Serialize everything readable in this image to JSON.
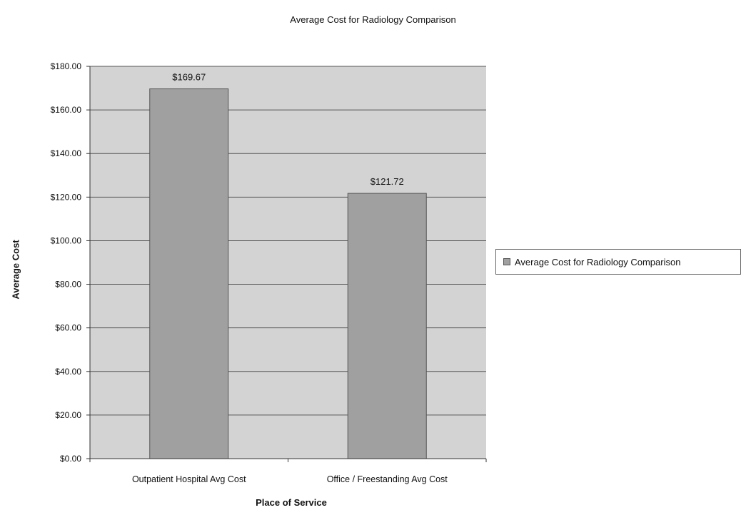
{
  "chart_data": {
    "type": "bar",
    "title": "Average Cost for Radiology Comparison",
    "xlabel": "Place of Service",
    "ylabel": "Average Cost",
    "categories": [
      "Outpatient Hospital Avg Cost",
      "Office / Freestanding Avg Cost"
    ],
    "series": [
      {
        "name": "Average Cost for Radiology Comparison",
        "values": [
          169.67,
          121.72
        ],
        "data_labels": [
          "$169.67",
          "$121.72"
        ]
      }
    ],
    "ylim": [
      0,
      180
    ],
    "yticks": [
      0,
      20,
      40,
      60,
      80,
      100,
      120,
      140,
      160,
      180
    ],
    "ytick_labels": [
      "$0.00",
      "$20.00",
      "$40.00",
      "$60.00",
      "$80.00",
      "$100.00",
      "$120.00",
      "$140.00",
      "$160.00",
      "$180.00"
    ],
    "grid": true,
    "legend_position": "right",
    "colors": {
      "plot_background": "#d3d3d3",
      "bar_fill": "#a0a0a0",
      "bar_stroke": "#555555",
      "gridline": "#555555"
    }
  }
}
